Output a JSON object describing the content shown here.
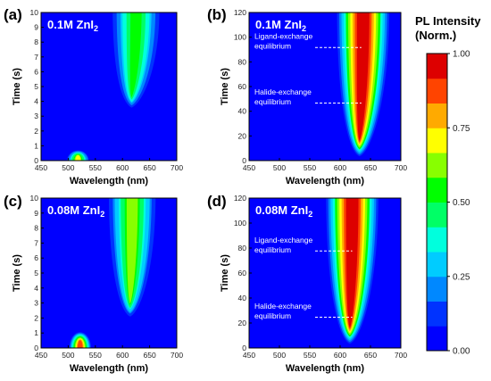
{
  "colorbar": {
    "title_line1": "PL Intensity",
    "title_line2": "(Norm.)",
    "ticks": [
      "0.00",
      "0.25",
      "0.50",
      "0.75",
      "1.00"
    ],
    "stops": [
      "#0000ff",
      "#0033ff",
      "#0088ff",
      "#00ccff",
      "#00ffdd",
      "#00ff66",
      "#00ff00",
      "#88ff00",
      "#ffff00",
      "#ffaa00",
      "#ff4400",
      "#dd0000"
    ]
  },
  "chart_data": [
    {
      "type": "heatmap",
      "panel": "(a)",
      "label": "0.1M ZnI",
      "label_sub": "2",
      "xlabel": "Wavelength (nm)",
      "ylabel": "Time (s)",
      "xlim": [
        450,
        700
      ],
      "ylim": [
        0,
        10
      ],
      "xticks": [
        "450",
        "500",
        "550",
        "600",
        "650",
        "700"
      ],
      "yticks": [
        "0",
        "1",
        "2",
        "3",
        "4",
        "5",
        "6",
        "7",
        "8",
        "9",
        "10"
      ],
      "features": [
        {
          "x": 625,
          "y0": 3.5,
          "y1": 10,
          "intensity": 0.55,
          "wavelength_shift": -8
        },
        {
          "x": 518,
          "y0": 0,
          "y1": 0.6,
          "intensity": 0.7,
          "wavelength_shift": 0
        }
      ],
      "annotations": []
    },
    {
      "type": "heatmap",
      "panel": "(b)",
      "label": "0.1M ZnI",
      "label_sub": "2",
      "xlabel": "Wavelength (nm)",
      "ylabel": "Time (s)",
      "xlim": [
        450,
        700
      ],
      "ylim": [
        0,
        120
      ],
      "xticks": [
        "450",
        "500",
        "550",
        "600",
        "650",
        "700"
      ],
      "yticks": [
        "0",
        "20",
        "40",
        "60",
        "80",
        "100",
        "120"
      ],
      "features": [
        {
          "x": 638,
          "y0": 2,
          "y1": 120,
          "intensity": 1.0,
          "wavelength_shift": -6
        }
      ],
      "annotations": [
        {
          "text_lines": [
            "Ligand-exchange",
            "equilibrium"
          ],
          "y": 92,
          "x_end": 635
        },
        {
          "text_lines": [
            "Halide-exchange",
            "equilibrium"
          ],
          "y": 47,
          "x_end": 635
        }
      ]
    },
    {
      "type": "heatmap",
      "panel": "(c)",
      "label": "0.08M ZnI",
      "label_sub": "2",
      "xlabel": "Wavelength (nm)",
      "ylabel": "Time (s)",
      "xlim": [
        450,
        700
      ],
      "ylim": [
        0,
        10
      ],
      "xticks": [
        "450",
        "500",
        "550",
        "600",
        "650",
        "700"
      ],
      "yticks": [
        "0",
        "1",
        "2",
        "3",
        "4",
        "5",
        "6",
        "7",
        "8",
        "9",
        "10"
      ],
      "features": [
        {
          "x": 618,
          "y0": 2.0,
          "y1": 10,
          "intensity": 0.6,
          "wavelength_shift": -4
        },
        {
          "x": 522,
          "y0": 0,
          "y1": 1.0,
          "intensity": 0.95,
          "wavelength_shift": 0
        }
      ],
      "annotations": []
    },
    {
      "type": "heatmap",
      "panel": "(d)",
      "label": "0.08M ZnI",
      "label_sub": "2",
      "xlabel": "Wavelength (nm)",
      "ylabel": "Time (s)",
      "xlim": [
        450,
        700
      ],
      "ylim": [
        0,
        120
      ],
      "xticks": [
        "450",
        "500",
        "550",
        "600",
        "650",
        "700"
      ],
      "yticks": [
        "0",
        "20",
        "40",
        "60",
        "80",
        "100",
        "120"
      ],
      "features": [
        {
          "x": 620,
          "y0": 2,
          "y1": 120,
          "intensity": 1.0,
          "wavelength_shift": -4
        }
      ],
      "annotations": [
        {
          "text_lines": [
            "Ligand-exchange",
            "equilibrium"
          ],
          "y": 78,
          "x_end": 620
        },
        {
          "text_lines": [
            "Halide-exchange",
            "equilibrium"
          ],
          "y": 25,
          "x_end": 620
        }
      ]
    }
  ]
}
